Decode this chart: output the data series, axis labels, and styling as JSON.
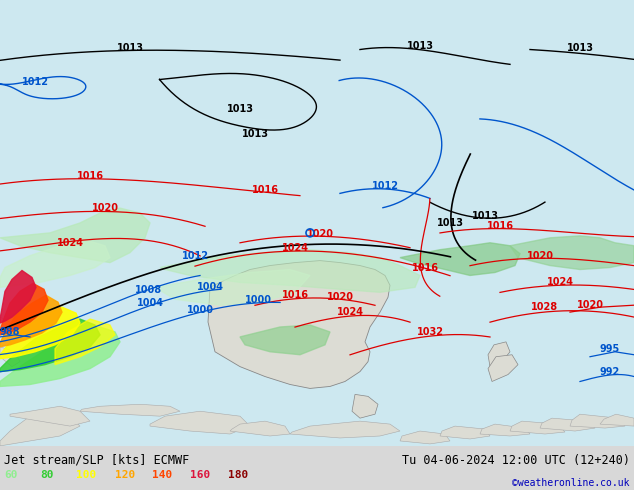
{
  "title_left": "Jet stream/SLP [kts] ECMWF",
  "title_right": "Tu 04-06-2024 12:00 UTC (12+240)",
  "credit": "©weatheronline.co.uk",
  "legend_values": [
    "60",
    "80",
    "100",
    "120",
    "140",
    "160",
    "180"
  ],
  "legend_colors": [
    "#90ee90",
    "#32cd32",
    "#ffff00",
    "#ffa500",
    "#ff4500",
    "#dc143c",
    "#8b0000"
  ],
  "fig_width": 6.34,
  "fig_height": 4.9,
  "dpi": 100,
  "ocean_color": "#cde8f0",
  "land_color": "#e8e8e8",
  "green_shading_light": "#c8f0c8",
  "green_shading_mid": "#90d890",
  "green_shading_dark": "#50b850",
  "bottom_bar_color": "#d8d8d8",
  "isobar_red": "#dd0000",
  "isobar_black": "#000000",
  "isobar_blue": "#0055cc"
}
